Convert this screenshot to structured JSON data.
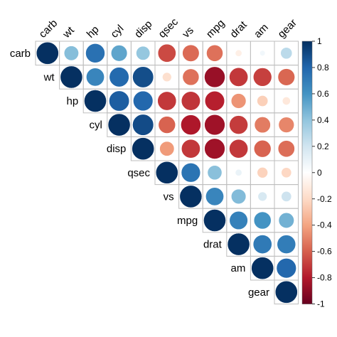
{
  "chart_data": {
    "type": "heatmap",
    "variables": [
      "carb",
      "wt",
      "hp",
      "cyl",
      "disp",
      "qsec",
      "vs",
      "mpg",
      "drat",
      "am",
      "gear"
    ],
    "matrix": [
      [
        1.0,
        0.43,
        0.75,
        0.53,
        0.39,
        -0.66,
        -0.57,
        -0.55,
        -0.09,
        0.06,
        0.27
      ],
      [
        0.43,
        1.0,
        0.66,
        0.78,
        0.89,
        -0.17,
        -0.55,
        -0.87,
        -0.71,
        -0.69,
        -0.58
      ],
      [
        0.75,
        0.66,
        1.0,
        0.83,
        0.79,
        -0.71,
        -0.72,
        -0.78,
        -0.45,
        -0.24,
        -0.13
      ],
      [
        0.53,
        0.78,
        0.83,
        1.0,
        0.9,
        -0.59,
        -0.81,
        -0.85,
        -0.7,
        -0.52,
        -0.49
      ],
      [
        0.39,
        0.89,
        0.79,
        0.9,
        1.0,
        -0.43,
        -0.71,
        -0.85,
        -0.71,
        -0.59,
        -0.56
      ],
      [
        -0.66,
        -0.17,
        -0.71,
        -0.59,
        -0.43,
        1.0,
        0.74,
        0.42,
        0.09,
        -0.23,
        -0.21
      ],
      [
        -0.57,
        -0.55,
        -0.72,
        -0.81,
        -0.71,
        0.74,
        1.0,
        0.66,
        0.44,
        0.17,
        0.21
      ],
      [
        -0.55,
        -0.87,
        -0.78,
        -0.85,
        -0.85,
        0.42,
        0.66,
        1.0,
        0.68,
        0.6,
        0.48
      ],
      [
        -0.09,
        -0.71,
        -0.45,
        -0.7,
        -0.71,
        0.09,
        0.44,
        0.68,
        1.0,
        0.71,
        0.7
      ],
      [
        0.06,
        -0.69,
        -0.24,
        -0.52,
        -0.59,
        -0.23,
        0.17,
        0.6,
        0.71,
        1.0,
        0.79
      ],
      [
        0.27,
        -0.58,
        -0.13,
        -0.49,
        -0.56,
        -0.21,
        0.21,
        0.48,
        0.7,
        0.79,
        1.0
      ]
    ],
    "display": "upper-triangle",
    "glyph": "circle",
    "colorbar": {
      "range": [
        -1,
        1
      ],
      "ticks": [
        "-1",
        "-0.8",
        "-0.6",
        "-0.4",
        "-0.2",
        "0",
        "0.2",
        "0.4",
        "0.6",
        "0.8",
        "1"
      ],
      "colors": [
        "#67001F",
        "#B2182B",
        "#D6604D",
        "#F4A582",
        "#FDDBC7",
        "#FFFFFF",
        "#D1E5F0",
        "#92C5DE",
        "#4393C3",
        "#2166AC",
        "#053061"
      ]
    }
  }
}
